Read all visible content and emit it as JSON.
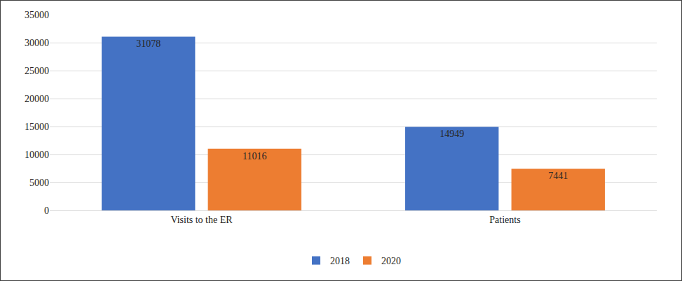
{
  "chart_data": {
    "type": "bar",
    "categories": [
      "Visits to the ER",
      "Patients"
    ],
    "series": [
      {
        "name": "2018",
        "color": "#4472c4",
        "values": [
          31078,
          14949
        ]
      },
      {
        "name": "2020",
        "color": "#ed7d31",
        "values": [
          11016,
          7441
        ]
      }
    ],
    "ylim": [
      0,
      35000
    ],
    "yticks": [
      0,
      5000,
      10000,
      15000,
      20000,
      25000,
      30000,
      35000
    ],
    "grid": true,
    "legend": "bottom",
    "data_labels": true
  }
}
